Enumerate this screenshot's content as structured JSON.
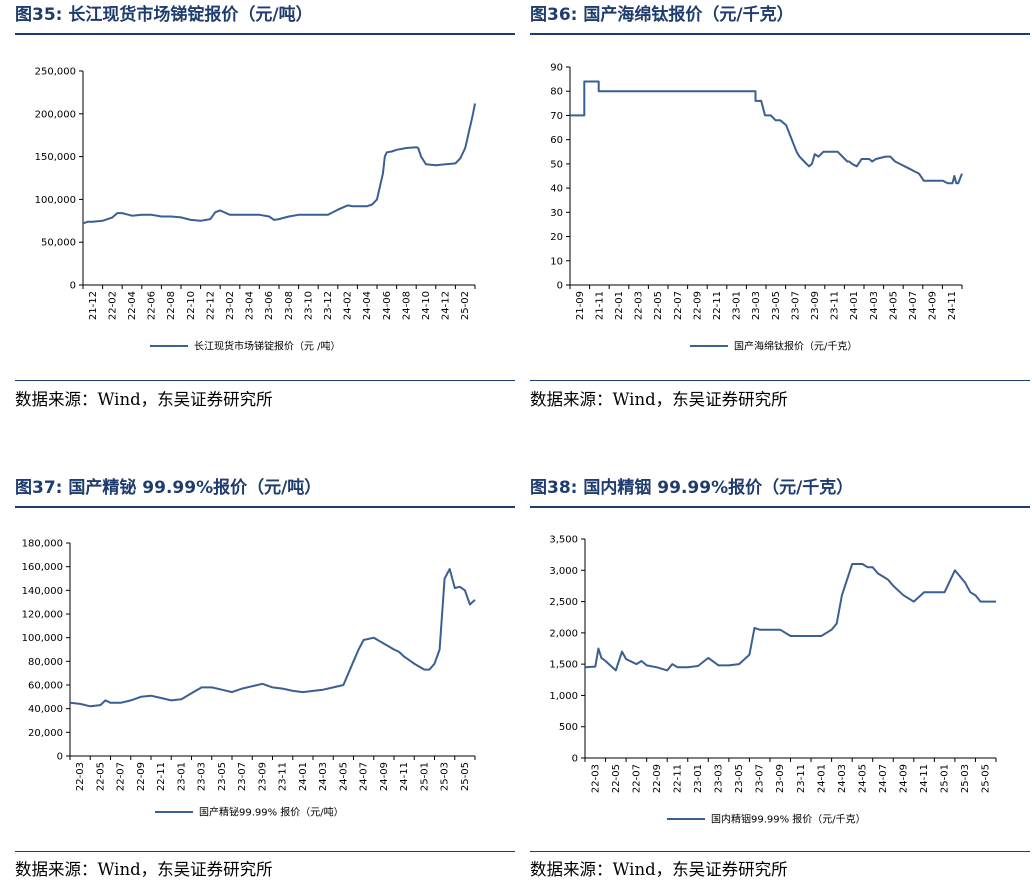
{
  "panels": [
    {
      "title": "图35:  长江现货市场锑锭报价（元/吨）",
      "source": "数据来源：Wind，东吴证券研究所"
    },
    {
      "title": "图36:  国产海绵钛报价（元/千克）",
      "source": "数据来源：Wind，东吴证券研究所"
    },
    {
      "title": "图37:  国产精铋 99.99%报价（元/吨）",
      "source": "数据来源：Wind，东吴证券研究所"
    },
    {
      "title": "图38:  国内精铟 99.99%报价（元/千克）",
      "source": "数据来源：Wind，东吴证券研究所"
    }
  ],
  "colors": {
    "line": "#3a5f93",
    "title": "#1f3c6e",
    "axis": "#000000"
  },
  "chart_data": [
    {
      "type": "line",
      "title": "长江现货市场锑锭报价（元/吨）",
      "ylim": [
        0,
        250000
      ],
      "yticks": [
        0,
        50000,
        100000,
        150000,
        200000,
        250000
      ],
      "ytick_labels": [
        "0",
        "50,000",
        "100,000",
        "150,000",
        "200,000",
        "250,000"
      ],
      "x_range": [
        0,
        40
      ],
      "x_tick_labels": [
        "21-12",
        "22-02",
        "22-04",
        "22-06",
        "22-08",
        "22-10",
        "22-12",
        "23-02",
        "23-04",
        "23-06",
        "23-08",
        "23-10",
        "23-12",
        "24-02",
        "24-04",
        "24-06",
        "24-08",
        "24-10",
        "24-12",
        "25-02"
      ],
      "legend": "长江现货市场锑锭报价（元 /吨）",
      "series": [
        {
          "name": "长江现货市场锑锭报价（元 /吨）",
          "x": [
            0,
            0.5,
            1,
            2,
            3,
            3.5,
            4,
            5,
            6,
            7,
            8,
            9,
            10,
            11,
            12,
            13,
            13.5,
            14,
            15,
            16,
            17,
            18,
            19,
            19.5,
            20,
            21,
            22,
            23,
            24,
            25,
            26,
            27,
            27.5,
            28,
            29,
            29.5,
            30,
            30.3,
            30.6,
            30.8,
            31,
            31.5,
            32,
            33,
            34,
            34.2,
            34.5,
            35,
            36,
            37,
            38,
            38.5,
            39,
            39.2,
            39.4,
            39.6,
            39.8,
            40
          ],
          "y": [
            72000,
            74000,
            74000,
            75000,
            79000,
            84000,
            84000,
            81000,
            82000,
            82000,
            80000,
            80000,
            79000,
            76000,
            75000,
            77000,
            85000,
            87000,
            82000,
            82000,
            82000,
            82000,
            80000,
            76000,
            77000,
            80000,
            82000,
            82000,
            82000,
            82000,
            88000,
            93000,
            92000,
            92000,
            92000,
            94000,
            100000,
            115000,
            130000,
            150000,
            155000,
            156000,
            158000,
            160000,
            161000,
            160000,
            150000,
            141000,
            140000,
            141000,
            142000,
            148000,
            160000,
            170000,
            180000,
            190000,
            200000,
            212000
          ]
        }
      ]
    },
    {
      "type": "line",
      "title": "国产海绵钛报价（元/千克）",
      "ylim": [
        0,
        90
      ],
      "yticks": [
        0,
        10,
        20,
        30,
        40,
        50,
        60,
        70,
        80,
        90
      ],
      "ytick_labels": [
        "0",
        "10",
        "20",
        "30",
        "40",
        "50",
        "60",
        "70",
        "80",
        "90"
      ],
      "x_range": [
        0,
        41
      ],
      "x_tick_labels": [
        "21-09",
        "21-11",
        "22-01",
        "22-03",
        "22-05",
        "22-07",
        "22-09",
        "22-11",
        "23-01",
        "23-03",
        "23-05",
        "23-07",
        "23-09",
        "23-11",
        "24-01",
        "24-03",
        "24-05",
        "24-07",
        "24-09",
        "24-11"
      ],
      "legend": "国产海绵钛报价（元/千克）",
      "series": [
        {
          "name": "国产海绵钛报价（元/千克）",
          "x": [
            0,
            1.5,
            1.5,
            3,
            3,
            18,
            18,
            19.4,
            19.4,
            20,
            20.4,
            21,
            21.5,
            22,
            22.6,
            23,
            23.4,
            23.7,
            24,
            24.5,
            25,
            25.3,
            25.6,
            26,
            26.5,
            27,
            28,
            29,
            29.2,
            29.5,
            30,
            30.5,
            31,
            31.3,
            31.6,
            32,
            33,
            33.5,
            34,
            34.5,
            35,
            35.5,
            36,
            36.5,
            37,
            38,
            39,
            39.5,
            40,
            40.2,
            40.4,
            40.6,
            41
          ],
          "y": [
            70,
            70,
            84,
            84,
            80,
            80,
            80,
            80,
            76,
            76,
            70,
            70,
            68,
            68,
            66,
            62,
            58,
            55,
            53,
            51,
            49,
            50,
            54,
            53,
            55,
            55,
            55,
            51,
            51,
            50,
            49,
            52,
            52,
            52,
            51,
            52,
            53,
            53,
            51,
            50,
            49,
            48,
            47,
            46,
            43,
            43,
            43,
            42,
            42,
            45,
            42,
            42,
            46
          ]
        }
      ]
    },
    {
      "type": "line",
      "title": "国产精铋 99.99%报价（元/吨）",
      "ylim": [
        0,
        180000
      ],
      "yticks": [
        0,
        20000,
        40000,
        60000,
        80000,
        100000,
        120000,
        140000,
        160000,
        180000
      ],
      "ytick_labels": [
        "0",
        "20,000",
        "40,000",
        "60,000",
        "80,000",
        "100,000",
        "120,000",
        "140,000",
        "160,000",
        "180,000"
      ],
      "x_range": [
        0,
        40
      ],
      "x_tick_labels": [
        "22-03",
        "22-05",
        "22-07",
        "22-09",
        "22-11",
        "23-01",
        "23-03",
        "23-05",
        "23-07",
        "23-09",
        "23-11",
        "24-01",
        "24-03",
        "24-05",
        "24-07",
        "24-09",
        "24-11",
        "25-01",
        "25-03",
        "25-05"
      ],
      "legend": "国产精铋99.99% 报价（元/吨）",
      "series": [
        {
          "name": "国产精铋99.99% 报价（元/吨）",
          "x": [
            0,
            1,
            2,
            3,
            3.5,
            4,
            5,
            6,
            7,
            8,
            9,
            10,
            11,
            12,
            13,
            14,
            15,
            16,
            17,
            18,
            19,
            20,
            21,
            22,
            23,
            24,
            25,
            26,
            27,
            28,
            28.5,
            29,
            30,
            31,
            32,
            32.5,
            33,
            34,
            35,
            35.5,
            36,
            36.3,
            36.5,
            37,
            37.5,
            38,
            38.5,
            39,
            39.5,
            40
          ],
          "y": [
            45000,
            44000,
            42000,
            43000,
            47000,
            45000,
            45000,
            47000,
            50000,
            51000,
            49000,
            47000,
            48000,
            53000,
            58000,
            58000,
            56000,
            54000,
            57000,
            59000,
            61000,
            58000,
            57000,
            55000,
            54000,
            55000,
            56000,
            58000,
            60000,
            80000,
            90000,
            98000,
            100000,
            95000,
            90000,
            88000,
            84000,
            78000,
            73000,
            73000,
            78000,
            85000,
            90000,
            150000,
            158000,
            142000,
            143000,
            140000,
            128000,
            132000
          ]
        }
      ]
    },
    {
      "type": "line",
      "title": "国内精铟 99.99%报价（元/千克）",
      "ylim": [
        0,
        3500
      ],
      "yticks": [
        0,
        500,
        1000,
        1500,
        2000,
        2500,
        3000,
        3500
      ],
      "ytick_labels": [
        "0",
        "500",
        "1,000",
        "1,500",
        "2,000",
        "2,500",
        "3,000",
        "3,500"
      ],
      "x_range": [
        0,
        40
      ],
      "x_tick_labels": [
        "22-03",
        "22-05",
        "22-07",
        "22-09",
        "22-11",
        "23-01",
        "23-03",
        "23-05",
        "23-07",
        "23-09",
        "23-11",
        "24-01",
        "24-03",
        "24-05",
        "24-07",
        "24-09",
        "24-11",
        "25-01",
        "25-03",
        "25-05"
      ],
      "legend": "国内精铟99.99% 报价（元/千克）",
      "series": [
        {
          "name": "国内精铟99.99% 报价（元/千克）",
          "x": [
            0,
            1,
            1.3,
            1.6,
            2,
            3,
            3.6,
            4,
            5,
            5.5,
            6,
            7,
            8,
            8.5,
            9,
            10,
            11,
            12,
            13,
            14,
            15,
            16,
            16.5,
            17,
            18,
            19,
            20,
            21,
            22,
            23,
            24,
            24.5,
            25,
            26,
            27,
            27.5,
            28,
            28.5,
            29,
            29.5,
            30,
            31,
            32,
            33,
            34,
            35,
            36,
            37,
            37.5,
            38,
            38.5,
            39,
            39.5,
            40
          ],
          "y": [
            1450,
            1460,
            1750,
            1600,
            1550,
            1400,
            1700,
            1580,
            1500,
            1550,
            1480,
            1450,
            1400,
            1500,
            1450,
            1450,
            1470,
            1600,
            1480,
            1480,
            1500,
            1650,
            2080,
            2050,
            2050,
            2050,
            1950,
            1950,
            1950,
            1950,
            2050,
            2150,
            2600,
            3100,
            3100,
            3050,
            3050,
            2950,
            2900,
            2850,
            2750,
            2600,
            2500,
            2650,
            2650,
            2650,
            3000,
            2800,
            2650,
            2600,
            2500,
            2500,
            2500,
            2500
          ]
        }
      ]
    }
  ]
}
